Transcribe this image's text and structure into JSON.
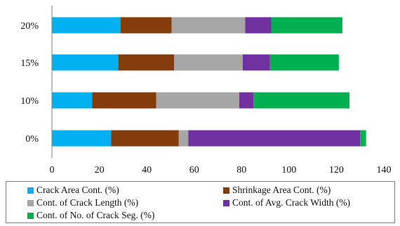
{
  "chart_data": {
    "type": "bar",
    "orientation": "horizontal",
    "stacked": true,
    "categories": [
      "0%",
      "10%",
      "15%",
      "20%"
    ],
    "xlim": [
      0,
      140
    ],
    "xticks": [
      "0",
      "20",
      "40",
      "60",
      "80",
      "100",
      "120",
      "140"
    ],
    "grid": false,
    "legend_position": "bottom",
    "series": [
      {
        "name": "Crack Area Cont. (%)",
        "color": "#00b0f0",
        "values": [
          25,
          17,
          28,
          29
        ]
      },
      {
        "name": "Shrinkage Area Cont. (%)",
        "color": "#843c0c",
        "values": [
          28.5,
          27,
          23.5,
          21.5
        ]
      },
      {
        "name": "Cont. of Crack Length (%)",
        "color": "#a6a6a6",
        "values": [
          4,
          35,
          29,
          31
        ]
      },
      {
        "name": "Cont. of Avg. Crack Width (%)",
        "color": "#7030a0",
        "values": [
          72.5,
          6,
          11.5,
          11
        ]
      },
      {
        "name": "Cont. of No. of Crack Seg. (%)",
        "color": "#00b050",
        "values": [
          2.5,
          40.5,
          29,
          30
        ]
      }
    ]
  }
}
